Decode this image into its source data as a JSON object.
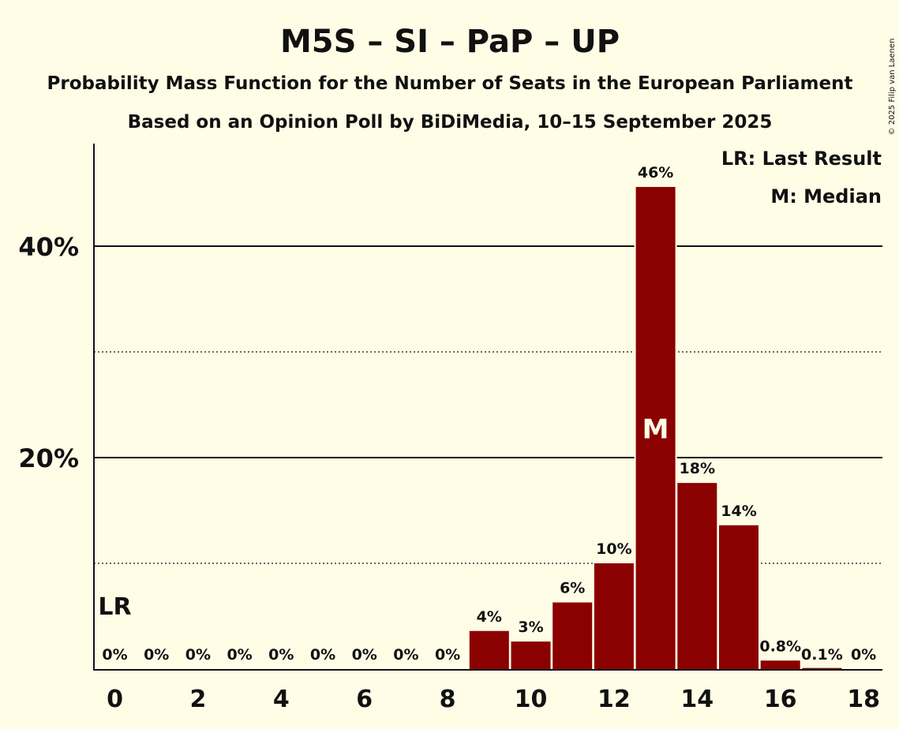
{
  "chart_data": {
    "type": "bar",
    "title": "M5S – SI – PaP – UP",
    "subtitle": "Probability Mass Function for the Number of Seats in the European Parliament",
    "subtitle2": "Based on an Opinion Poll by BiDiMedia, 10–15 September 2025",
    "copyright": "© 2025 Filip van Laenen",
    "categories": [
      0,
      1,
      2,
      3,
      4,
      5,
      6,
      7,
      8,
      9,
      10,
      11,
      12,
      13,
      14,
      15,
      16,
      17,
      18
    ],
    "values": [
      0,
      0,
      0,
      0,
      0,
      0,
      0,
      0,
      0,
      3.6,
      2.6,
      6.3,
      10.0,
      45.6,
      17.6,
      13.6,
      0.8,
      0.1,
      0
    ],
    "data_labels": [
      "0%",
      "0%",
      "0%",
      "0%",
      "0%",
      "0%",
      "0%",
      "0%",
      "0%",
      "4%",
      "3%",
      "6%",
      "10%",
      "46%",
      "18%",
      "14%",
      "0.8%",
      "0.1%",
      "0%"
    ],
    "x_tick_labels": [
      "0",
      "2",
      "4",
      "6",
      "8",
      "10",
      "12",
      "14",
      "16",
      "18"
    ],
    "x_tick_values": [
      0,
      2,
      4,
      6,
      8,
      10,
      12,
      14,
      16,
      18
    ],
    "y_ticks": [
      {
        "value": 20,
        "label": "20%"
      },
      {
        "value": 40,
        "label": "40%"
      }
    ],
    "y_minor_gridlines": [
      10,
      30
    ],
    "ylim": [
      0,
      50
    ],
    "bar_color": "#8B0000",
    "background_color": "#FFFDE6",
    "last_result": {
      "seat": 0,
      "label": "LR"
    },
    "median": {
      "seat": 13,
      "label": "M"
    },
    "legend": [
      "LR: Last Result",
      "M: Median"
    ],
    "legend_position": "top-right",
    "grid": true
  }
}
